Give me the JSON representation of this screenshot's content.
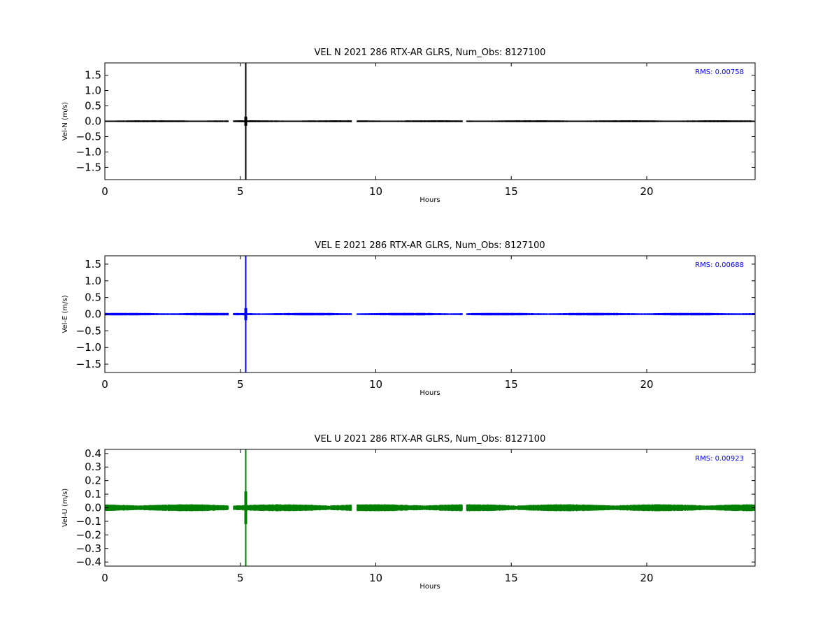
{
  "chart_data": [
    {
      "type": "scatter",
      "title": "VEL N 2021 286 RTX-AR  GLRS, Num_Obs: 8127100",
      "xlabel": "Hours",
      "ylabel": "Vel-N (m/s)",
      "xlim": [
        0,
        24
      ],
      "ylim": [
        -1.9,
        1.9
      ],
      "x_ticks": [
        0,
        5,
        10,
        15,
        20
      ],
      "x_tick_labels": [
        "0",
        "5",
        "10",
        "15",
        "20"
      ],
      "y_ticks": [
        1.5,
        1.0,
        0.5,
        0.0,
        -0.5,
        -1.0,
        -1.5
      ],
      "y_tick_labels": [
        "1.5",
        "1.0",
        "0.5",
        "0.0",
        "−0.5",
        "−1.0",
        "−1.5"
      ],
      "annotation": "RMS:  0.00758",
      "color": "#000000",
      "grid": false,
      "band_halfwidth": 0.025,
      "gaps": [
        [
          4.55,
          4.75
        ],
        [
          9.1,
          9.3
        ],
        [
          13.2,
          13.35
        ]
      ],
      "spike": {
        "x": 5.2,
        "ymin": -1.9,
        "ymax": 1.9
      }
    },
    {
      "type": "scatter",
      "title": "VEL E 2021 286 RTX-AR  GLRS, Num_Obs: 8127100",
      "xlabel": "Hours",
      "ylabel": "Vel-E (m/s)",
      "xlim": [
        0,
        24
      ],
      "ylim": [
        -1.75,
        1.75
      ],
      "x_ticks": [
        0,
        5,
        10,
        15,
        20
      ],
      "x_tick_labels": [
        "0",
        "5",
        "10",
        "15",
        "20"
      ],
      "y_ticks": [
        1.5,
        1.0,
        0.5,
        0.0,
        -0.5,
        -1.0,
        -1.5
      ],
      "y_tick_labels": [
        "1.5",
        "1.0",
        "0.5",
        "0.0",
        "−0.5",
        "−1.0",
        "−1.5"
      ],
      "annotation": "RMS:  0.00688",
      "color": "#0000ff",
      "grid": false,
      "band_halfwidth": 0.03,
      "gaps": [
        [
          4.55,
          4.75
        ],
        [
          9.1,
          9.3
        ],
        [
          13.2,
          13.35
        ]
      ],
      "spike": {
        "x": 5.2,
        "ymin": -1.75,
        "ymax": 1.75
      }
    },
    {
      "type": "scatter",
      "title": "VEL U 2021 286 RTX-AR  GLRS, Num_Obs: 8127100",
      "xlabel": "Hours",
      "ylabel": "Vel-U (m/s)",
      "xlim": [
        0,
        24
      ],
      "ylim": [
        -0.43,
        0.43
      ],
      "x_ticks": [
        0,
        5,
        10,
        15,
        20
      ],
      "x_tick_labels": [
        "0",
        "5",
        "10",
        "15",
        "20"
      ],
      "y_ticks": [
        0.4,
        0.3,
        0.2,
        0.1,
        0.0,
        -0.1,
        -0.2,
        -0.3,
        -0.4
      ],
      "y_tick_labels": [
        "0.4",
        "0.3",
        "0.2",
        "0.1",
        "0.0",
        "−0.1",
        "−0.2",
        "−0.3",
        "−0.4"
      ],
      "annotation": "RMS:  0.00923",
      "color": "#008000",
      "grid": false,
      "band_halfwidth": 0.02,
      "gaps": [
        [
          4.55,
          4.75
        ],
        [
          9.1,
          9.3
        ],
        [
          13.2,
          13.35
        ]
      ],
      "spike": {
        "x": 5.2,
        "ymin": -0.43,
        "ymax": 0.43
      }
    }
  ]
}
